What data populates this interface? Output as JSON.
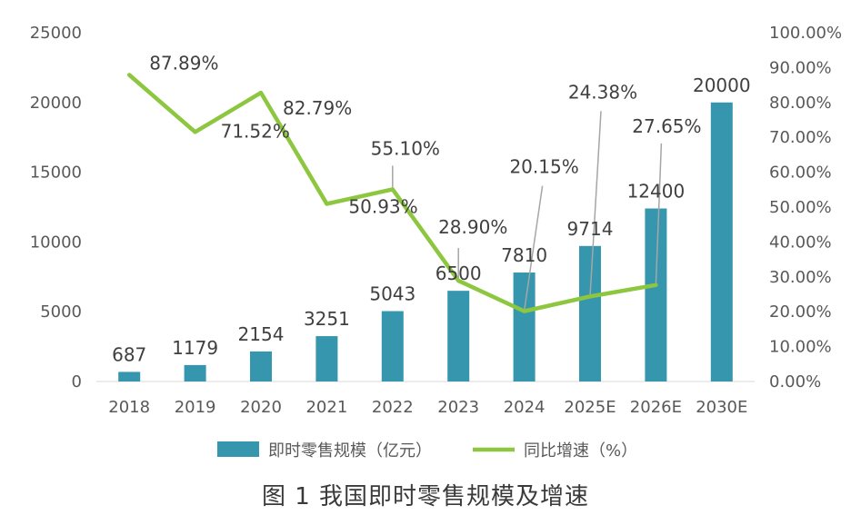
{
  "figure_caption": "图 1  我国即时零售规模及增速",
  "chart_data": {
    "type": "bar+line",
    "categories": [
      "2018",
      "2019",
      "2020",
      "2021",
      "2022",
      "2023",
      "2024",
      "2025E",
      "2026E",
      "2030E"
    ],
    "series": [
      {
        "name": "即时零售规模（亿元）",
        "type": "bar",
        "axis": "left",
        "color": "#3596ad",
        "values": [
          687,
          1179,
          2154,
          3251,
          5043,
          6500,
          7810,
          9714,
          12400,
          20000
        ],
        "labels": [
          "687",
          "1179",
          "2154",
          "3251",
          "5043",
          "6500",
          "7810",
          "9714",
          "12400",
          "20000"
        ]
      },
      {
        "name": "同比增速（%）",
        "type": "line",
        "axis": "right",
        "color": "#8dc63f",
        "values": [
          87.89,
          71.52,
          82.79,
          50.93,
          55.1,
          28.9,
          20.15,
          24.38,
          27.65,
          null
        ],
        "labels": [
          "87.89%",
          "71.52%",
          "82.79%",
          "50.93%",
          "55.10%",
          "28.90%",
          "20.15%",
          "24.38%",
          "27.65%",
          ""
        ]
      }
    ],
    "y_left": {
      "range": [
        0,
        25000
      ],
      "ticks": [
        "0",
        "5000",
        "10000",
        "15000",
        "20000",
        "25000"
      ]
    },
    "y_right": {
      "range": [
        0,
        100
      ],
      "ticks": [
        "0.00%",
        "10.00%",
        "20.00%",
        "30.00%",
        "40.00%",
        "50.00%",
        "60.00%",
        "70.00%",
        "80.00%",
        "90.00%",
        "100.00%"
      ]
    },
    "legend_position": "bottom",
    "grid": false
  }
}
